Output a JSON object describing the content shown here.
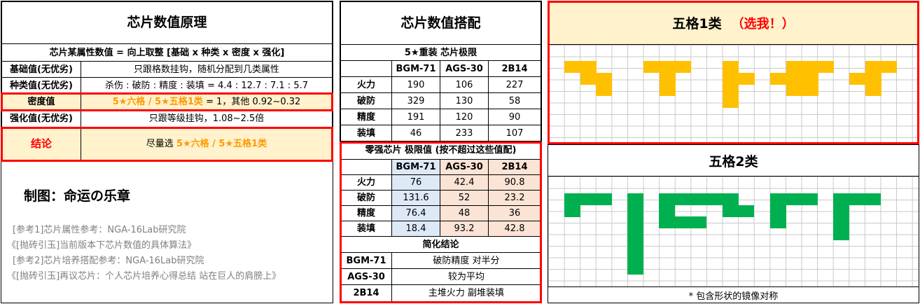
{
  "left": {
    "title": "芯片数值原理",
    "formula": "芯片某属性数值 = 向上取整 [基础 x 种类 x 密度 x 强化]",
    "rows": [
      {
        "label": "基础值(无优劣)",
        "value": "只跟格数挂钩，随机分配到几类属性"
      },
      {
        "label": "种类值(无优劣)",
        "value": "杀伤 : 破防 : 精度 : 装填 = 4.4 : 12.7 : 7.1 : 5.7"
      }
    ],
    "density": {
      "label": "密度值",
      "highlight": "5★六格 / 5★五格1类",
      "rest": " = 1，其他 0.92~0.32"
    },
    "enhance": {
      "label": "强化值(无优劣)",
      "value": "只跟等级挂钩，1.08~2.5倍"
    },
    "conclusion": {
      "label": "结论",
      "prefix": "尽量选 ",
      "highlight": "5★六格 / 5★五格1类"
    },
    "author": "制图：命运の乐章",
    "refs": [
      "[参考1]芯片属性参考：NGA-16Lab研究院",
      "《[抛砖引玉]当前版本下芯片数值的具体算法》",
      "[参考2]芯片培养搭配参考：NGA-16Lab研究院",
      "《[抛砖引玉]再议芯片：个人芯片培养心得总结 站在巨人的肩膀上》"
    ]
  },
  "middle": {
    "title": "芯片数值搭配",
    "t1": {
      "caption": "5★重装 芯片极限",
      "cols": [
        "BGM-71",
        "AGS-30",
        "2B14"
      ],
      "rows": [
        {
          "label": "火力",
          "values": [
            "190",
            "106",
            "227"
          ]
        },
        {
          "label": "破防",
          "values": [
            "329",
            "130",
            "58"
          ]
        },
        {
          "label": "精度",
          "values": [
            "191",
            "120",
            "90"
          ]
        },
        {
          "label": "装填",
          "values": [
            "46",
            "233",
            "107"
          ]
        }
      ]
    },
    "t2": {
      "caption": "零强芯片 极限值 (按不超过这些值配)",
      "cols": [
        "BGM-71",
        "AGS-30",
        "2B14"
      ],
      "rows": [
        {
          "label": "火力",
          "values": [
            "76",
            "42.4",
            "90.8"
          ]
        },
        {
          "label": "破防",
          "values": [
            "131.6",
            "52",
            "23.2"
          ]
        },
        {
          "label": "精度",
          "values": [
            "76.4",
            "48",
            "36"
          ]
        },
        {
          "label": "装填",
          "values": [
            "18.4",
            "93.2",
            "42.8"
          ]
        }
      ]
    },
    "t3": {
      "caption": "简化结论",
      "rows": [
        {
          "label": "BGM-71",
          "value": "破防精度 对半分"
        },
        {
          "label": "AGS-30",
          "value": "较为平均"
        },
        {
          "label": "2B14",
          "value": "主堆火力 副堆装填"
        }
      ]
    }
  },
  "right": {
    "title1": "五格1类",
    "title1_note": "（选我！）",
    "title2": "五格2类",
    "footnote": "* 包含形状的镜像对称",
    "colors": {
      "gold": "#ffc000",
      "green": "#00b050",
      "red": "#ff0000",
      "cream": "#fff2cc",
      "orange": "#ff9900"
    }
  }
}
